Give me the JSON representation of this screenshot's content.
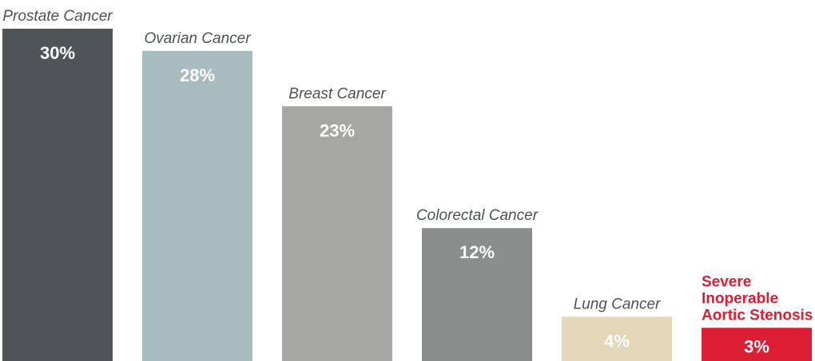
{
  "chart_data": {
    "type": "bar",
    "title": "",
    "xlabel": "",
    "ylabel": "",
    "ylim": [
      0,
      30
    ],
    "grid": false,
    "legend": "none",
    "categories": [
      "Prostate Cancer",
      "Ovarian Cancer",
      "Breast Cancer",
      "Colorectal Cancer",
      "Lung Cancer",
      "Severe Inoperable Aortic Stenosis"
    ],
    "category_lines": [
      [
        "Prostate Cancer"
      ],
      [
        "Ovarian Cancer"
      ],
      [
        "Breast Cancer"
      ],
      [
        "Colorectal Cancer"
      ],
      [
        "Lung Cancer"
      ],
      [
        "Severe",
        "Inoperable",
        "Aortic Stenosis"
      ]
    ],
    "values": [
      30,
      28,
      23,
      12,
      4,
      3
    ],
    "value_labels": [
      "30%",
      "28%",
      "23%",
      "12%",
      "4%",
      "3%"
    ],
    "colors": [
      "#4f5457",
      "#a8bbbf",
      "#a6a6a4",
      "#8a8e8c",
      "#e4d6b9",
      "#dc1e35"
    ],
    "highlight_index": 5,
    "highlight_color": "#dc1e35",
    "label_color": "#4d5356"
  }
}
